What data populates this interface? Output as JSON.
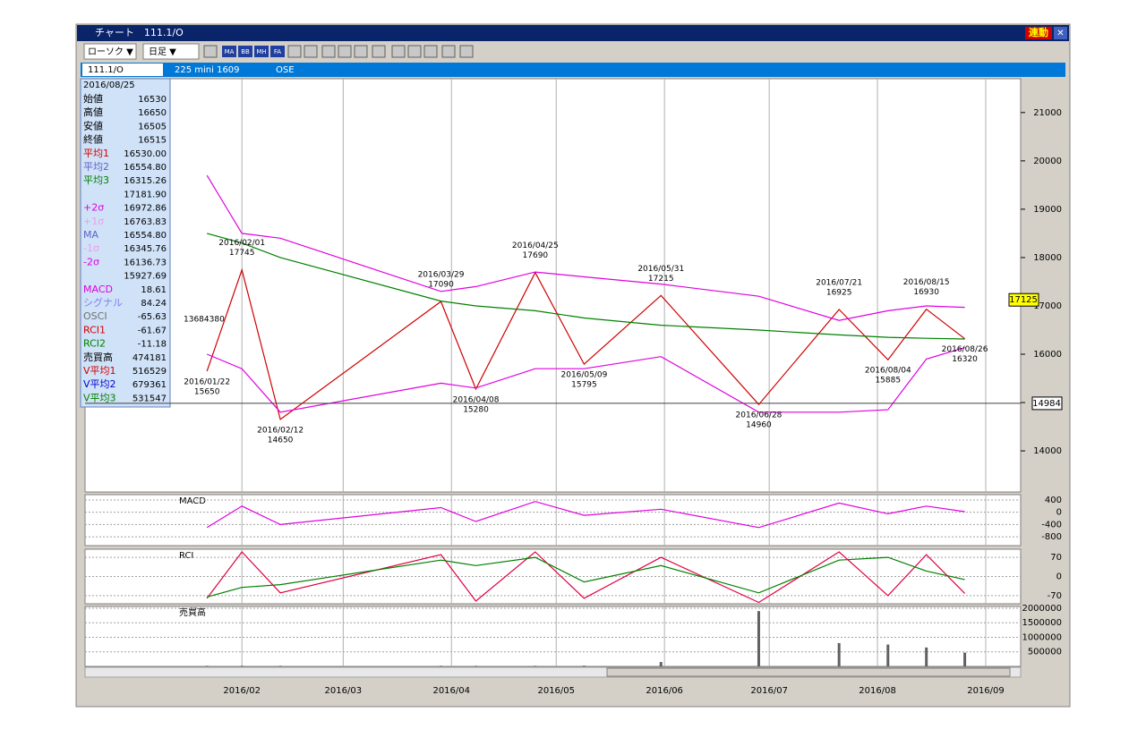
{
  "window": {
    "title": "チャート　111.1/O",
    "link_button": "連動",
    "close_button": "✕"
  },
  "toolbar": {
    "chart_style": "ローソク ▼",
    "period": "日足 ▼",
    "icons": [
      "MA",
      "BB",
      "MH",
      "FA"
    ]
  },
  "info_bar": {
    "code": "111.1/O",
    "name": "225 mini 1609",
    "exchange": "OSE"
  },
  "info_panel": {
    "date": "2016/08/25",
    "rows": [
      {
        "label": "始値",
        "value": "16530",
        "color": "#000000"
      },
      {
        "label": "高値",
        "value": "16650",
        "color": "#000000"
      },
      {
        "label": "安値",
        "value": "16505",
        "color": "#000000"
      },
      {
        "label": "終値",
        "value": "16515",
        "color": "#000000"
      },
      {
        "label": "平均1",
        "value": "16530.00",
        "color": "#d00000"
      },
      {
        "label": "平均2",
        "value": "16554.80",
        "color": "#6060c8"
      },
      {
        "label": "平均3",
        "value": "16315.26",
        "color": "#008000"
      },
      {
        "label": null,
        "value": "17181.90",
        "color": "#000000"
      },
      {
        "label": "+2σ",
        "value": "16972.86",
        "color": "#e000e0"
      },
      {
        "label": "+1σ",
        "value": "16763.83",
        "color": "#e8a0e8"
      },
      {
        "label": "MA",
        "value": "16554.80",
        "color": "#6060c8"
      },
      {
        "label": "-1σ",
        "value": "16345.76",
        "color": "#e8a0e8"
      },
      {
        "label": "-2σ",
        "value": "16136.73",
        "color": "#e000e0"
      },
      {
        "label": null,
        "value": "15927.69",
        "color": "#000000"
      },
      {
        "label": "MACD",
        "value": "18.61",
        "color": "#e000e0"
      },
      {
        "label": "シグナル",
        "value": "84.24",
        "color": "#8080f0"
      },
      {
        "label": "OSCI",
        "value": "-65.63",
        "color": "#707070"
      },
      {
        "label": "RCI1",
        "value": "-61.67",
        "color": "#d00000"
      },
      {
        "label": "RCI2",
        "value": "-11.18",
        "color": "#008000"
      },
      {
        "label": "売買高",
        "value": "474181",
        "color": "#000000"
      },
      {
        "label": "V平均1",
        "value": "516529",
        "color": "#d00000"
      },
      {
        "label": "V平均2",
        "value": "679361",
        "color": "#0000d0"
      },
      {
        "label": "V平均3",
        "value": "531547",
        "color": "#008000"
      }
    ]
  },
  "chart_data": [
    {
      "type": "line",
      "categories": [
        "2016/01/22",
        "2016/02/01",
        "2016/02/12",
        "2016/03/29",
        "2016/04/08",
        "2016/04/25",
        "2016/05/09",
        "2016/05/31",
        "2016/06/28",
        "2016/07/21",
        "2016/08/04",
        "2016/08/15",
        "2016/08/26"
      ],
      "xlim": [
        "2016/01/14",
        "2016/09/11"
      ],
      "xticks": [
        "2016/02",
        "2016/03",
        "2016/04",
        "2016/05",
        "2016/06",
        "2016/07",
        "2016/08",
        "2016/09"
      ],
      "ylim": [
        13150,
        21700
      ],
      "yticks": [
        14000,
        15000,
        16000,
        17000,
        18000,
        19000,
        20000,
        21000
      ],
      "series": [
        {
          "color": "#d00000",
          "values": [
            15650,
            17745,
            14650,
            17090,
            15280,
            17690,
            15795,
            17215,
            14960,
            16925,
            15885,
            16930,
            16320
          ]
        },
        {
          "color": "#008000",
          "values": [
            18500,
            18300,
            18000,
            17100,
            17000,
            16900,
            16750,
            16600,
            16500,
            16400,
            16350,
            16330,
            16315
          ]
        },
        {
          "color": "#e000e0",
          "values": [
            19700,
            18500,
            18400,
            17300,
            17400,
            17700,
            17600,
            17450,
            17200,
            16700,
            16900,
            17000,
            16970
          ]
        },
        {
          "color": "#e000e0",
          "values": [
            16000,
            15700,
            14800,
            15400,
            15300,
            15700,
            15700,
            15950,
            14800,
            14800,
            14850,
            15900,
            16137
          ]
        }
      ],
      "annotation": "13684380",
      "last_price": 17125,
      "cursor_price": 14984
    },
    {
      "type": "line",
      "title": "MACD",
      "ylim": [
        -1090,
        575
      ],
      "yticks": [
        400,
        0,
        -400,
        -800
      ],
      "series": [
        {
          "color": "#e000e0",
          "values": [
            -500,
            200,
            -400,
            150,
            -300,
            350,
            -100,
            100,
            -500,
            300,
            -50,
            200,
            19
          ]
        }
      ]
    },
    {
      "type": "line",
      "title": "RCI",
      "ylim": [
        -100,
        100
      ],
      "yticks": [
        70,
        0,
        -70
      ],
      "series": [
        {
          "color": "#e00040",
          "values": [
            -80,
            90,
            -60,
            80,
            -90,
            90,
            -80,
            70,
            -95,
            90,
            -70,
            80,
            -62
          ]
        },
        {
          "color": "#008000",
          "values": [
            -75,
            -40,
            -30,
            60,
            40,
            70,
            -20,
            40,
            -60,
            60,
            70,
            20,
            -11
          ]
        }
      ]
    },
    {
      "type": "bar",
      "title": "売買高",
      "ylim": [
        0,
        2060000
      ],
      "yticks": [
        500000,
        1000000,
        1500000,
        2000000
      ],
      "color": "#606060",
      "values": [
        20000,
        20000,
        20000,
        20000,
        20000,
        20000,
        25000,
        150000,
        1900000,
        800000,
        750000,
        650000,
        474181
      ]
    }
  ]
}
